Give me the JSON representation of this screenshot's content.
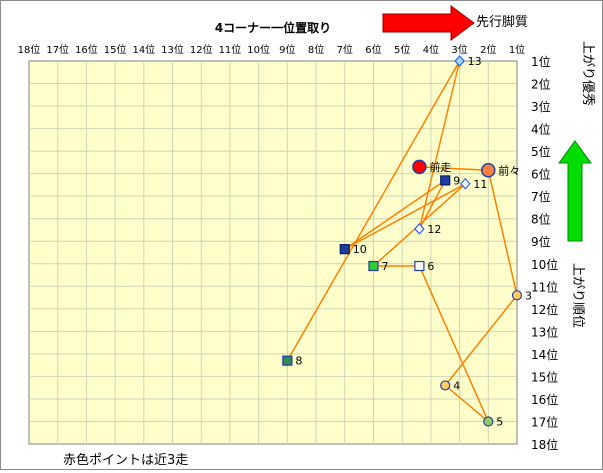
{
  "chart_data": {
    "type": "scatter",
    "title": "4コーナー一位置取り",
    "x_ticks": [
      "18位",
      "17位",
      "16位",
      "15位",
      "14位",
      "13位",
      "12位",
      "11位",
      "10位",
      "9位",
      "8位",
      "7位",
      "6位",
      "5位",
      "4位",
      "3位",
      "2位",
      "1位"
    ],
    "y_ticks": [
      "1位",
      "2位",
      "3位",
      "4位",
      "5位",
      "6位",
      "7位",
      "8位",
      "9位",
      "10位",
      "11位",
      "12位",
      "13位",
      "14位",
      "15位",
      "16位",
      "17位",
      "18位"
    ],
    "xlim": [
      18,
      1
    ],
    "ylim": [
      1,
      18
    ],
    "grid": true,
    "plot_background": "#ffffcc",
    "line_color": "#ff8000",
    "points": [
      {
        "label": "13",
        "x": 3.0,
        "y": 1.0,
        "marker": "diamond",
        "fill": "#a6d8ff",
        "stroke": "#1f5fff"
      },
      {
        "label": "前走",
        "x": 4.4,
        "y": 5.7,
        "marker": "circle-large",
        "fill": "#ff0000",
        "stroke": "#1f3fa0"
      },
      {
        "label": "前々",
        "x": 2.0,
        "y": 5.85,
        "marker": "circle-large",
        "fill": "#ff8040",
        "stroke": "#1f3fa0"
      },
      {
        "label": "9",
        "x": 3.5,
        "y": 6.3,
        "marker": "square",
        "fill": "#1f3fa0",
        "stroke": "#0a1a66"
      },
      {
        "label": "11",
        "x": 2.8,
        "y": 6.45,
        "marker": "diamond",
        "fill": "#ffffff",
        "stroke": "#1f5fff"
      },
      {
        "label": "12",
        "x": 4.4,
        "y": 8.45,
        "marker": "diamond",
        "fill": "#ffffff",
        "stroke": "#1f5fff"
      },
      {
        "label": "10",
        "x": 7.0,
        "y": 9.35,
        "marker": "square",
        "fill": "#1f3fa0",
        "stroke": "#0a1a66"
      },
      {
        "label": "7",
        "x": 6.0,
        "y": 10.1,
        "marker": "square",
        "fill": "#33cc33",
        "stroke": "#1f3fa0"
      },
      {
        "label": "6",
        "x": 4.4,
        "y": 10.1,
        "marker": "square",
        "fill": "#ffffff",
        "stroke": "#1f3fa0"
      },
      {
        "label": "3",
        "x": 1.0,
        "y": 11.4,
        "marker": "circle",
        "fill": "#ffcc66",
        "stroke": "#1f3fa0"
      },
      {
        "label": "8",
        "x": 9.0,
        "y": 14.3,
        "marker": "square",
        "fill": "#2e8b57",
        "stroke": "#1f3fa0"
      },
      {
        "label": "4",
        "x": 3.5,
        "y": 15.4,
        "marker": "circle",
        "fill": "#ffcc66",
        "stroke": "#1f3fa0"
      },
      {
        "label": "5",
        "x": 2.0,
        "y": 17.0,
        "marker": "circle",
        "fill": "#99cc66",
        "stroke": "#1f3fa0"
      }
    ],
    "path": [
      "前走",
      "前々",
      "3",
      "4",
      "5",
      "6",
      "7",
      "11",
      "10",
      "9",
      "12",
      "13",
      "8"
    ],
    "annotations": {
      "top_arrow_label": "先行脚質",
      "right_top_label": "上がり優秀",
      "right_bottom_label": "上がり順位",
      "footer": "赤色ポイントは近3走"
    },
    "arrow_colors": {
      "red": "#ff0000",
      "green": "#00dd00"
    }
  }
}
